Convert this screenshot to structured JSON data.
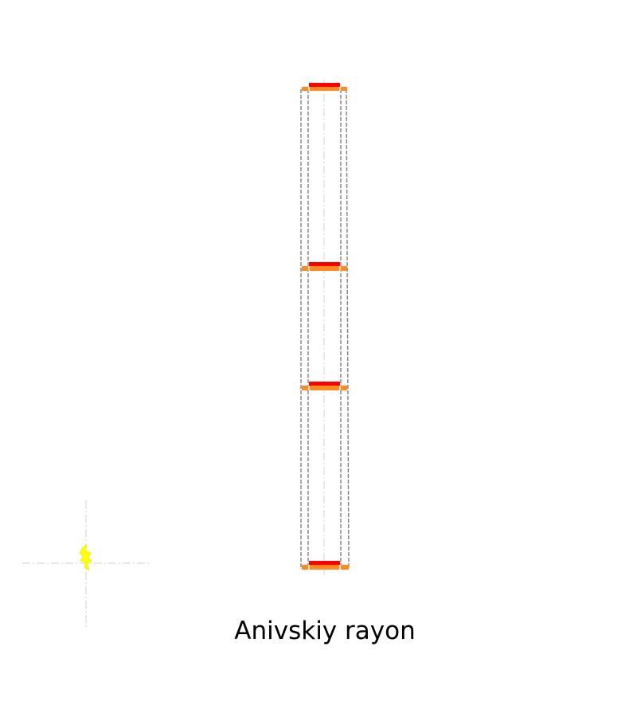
{
  "map": {
    "region_label": "Anivskiy rayon",
    "colors": {
      "background": "#ffffff",
      "boundary_dashed": "#808080",
      "axis_dashdot": "#d0d0d0",
      "band_primary": "#ff0000",
      "band_secondary": "#ff8a1f",
      "locator_marker": "#ffff00"
    },
    "icons": {
      "locator_marker": "lightning-shape-icon"
    }
  }
}
